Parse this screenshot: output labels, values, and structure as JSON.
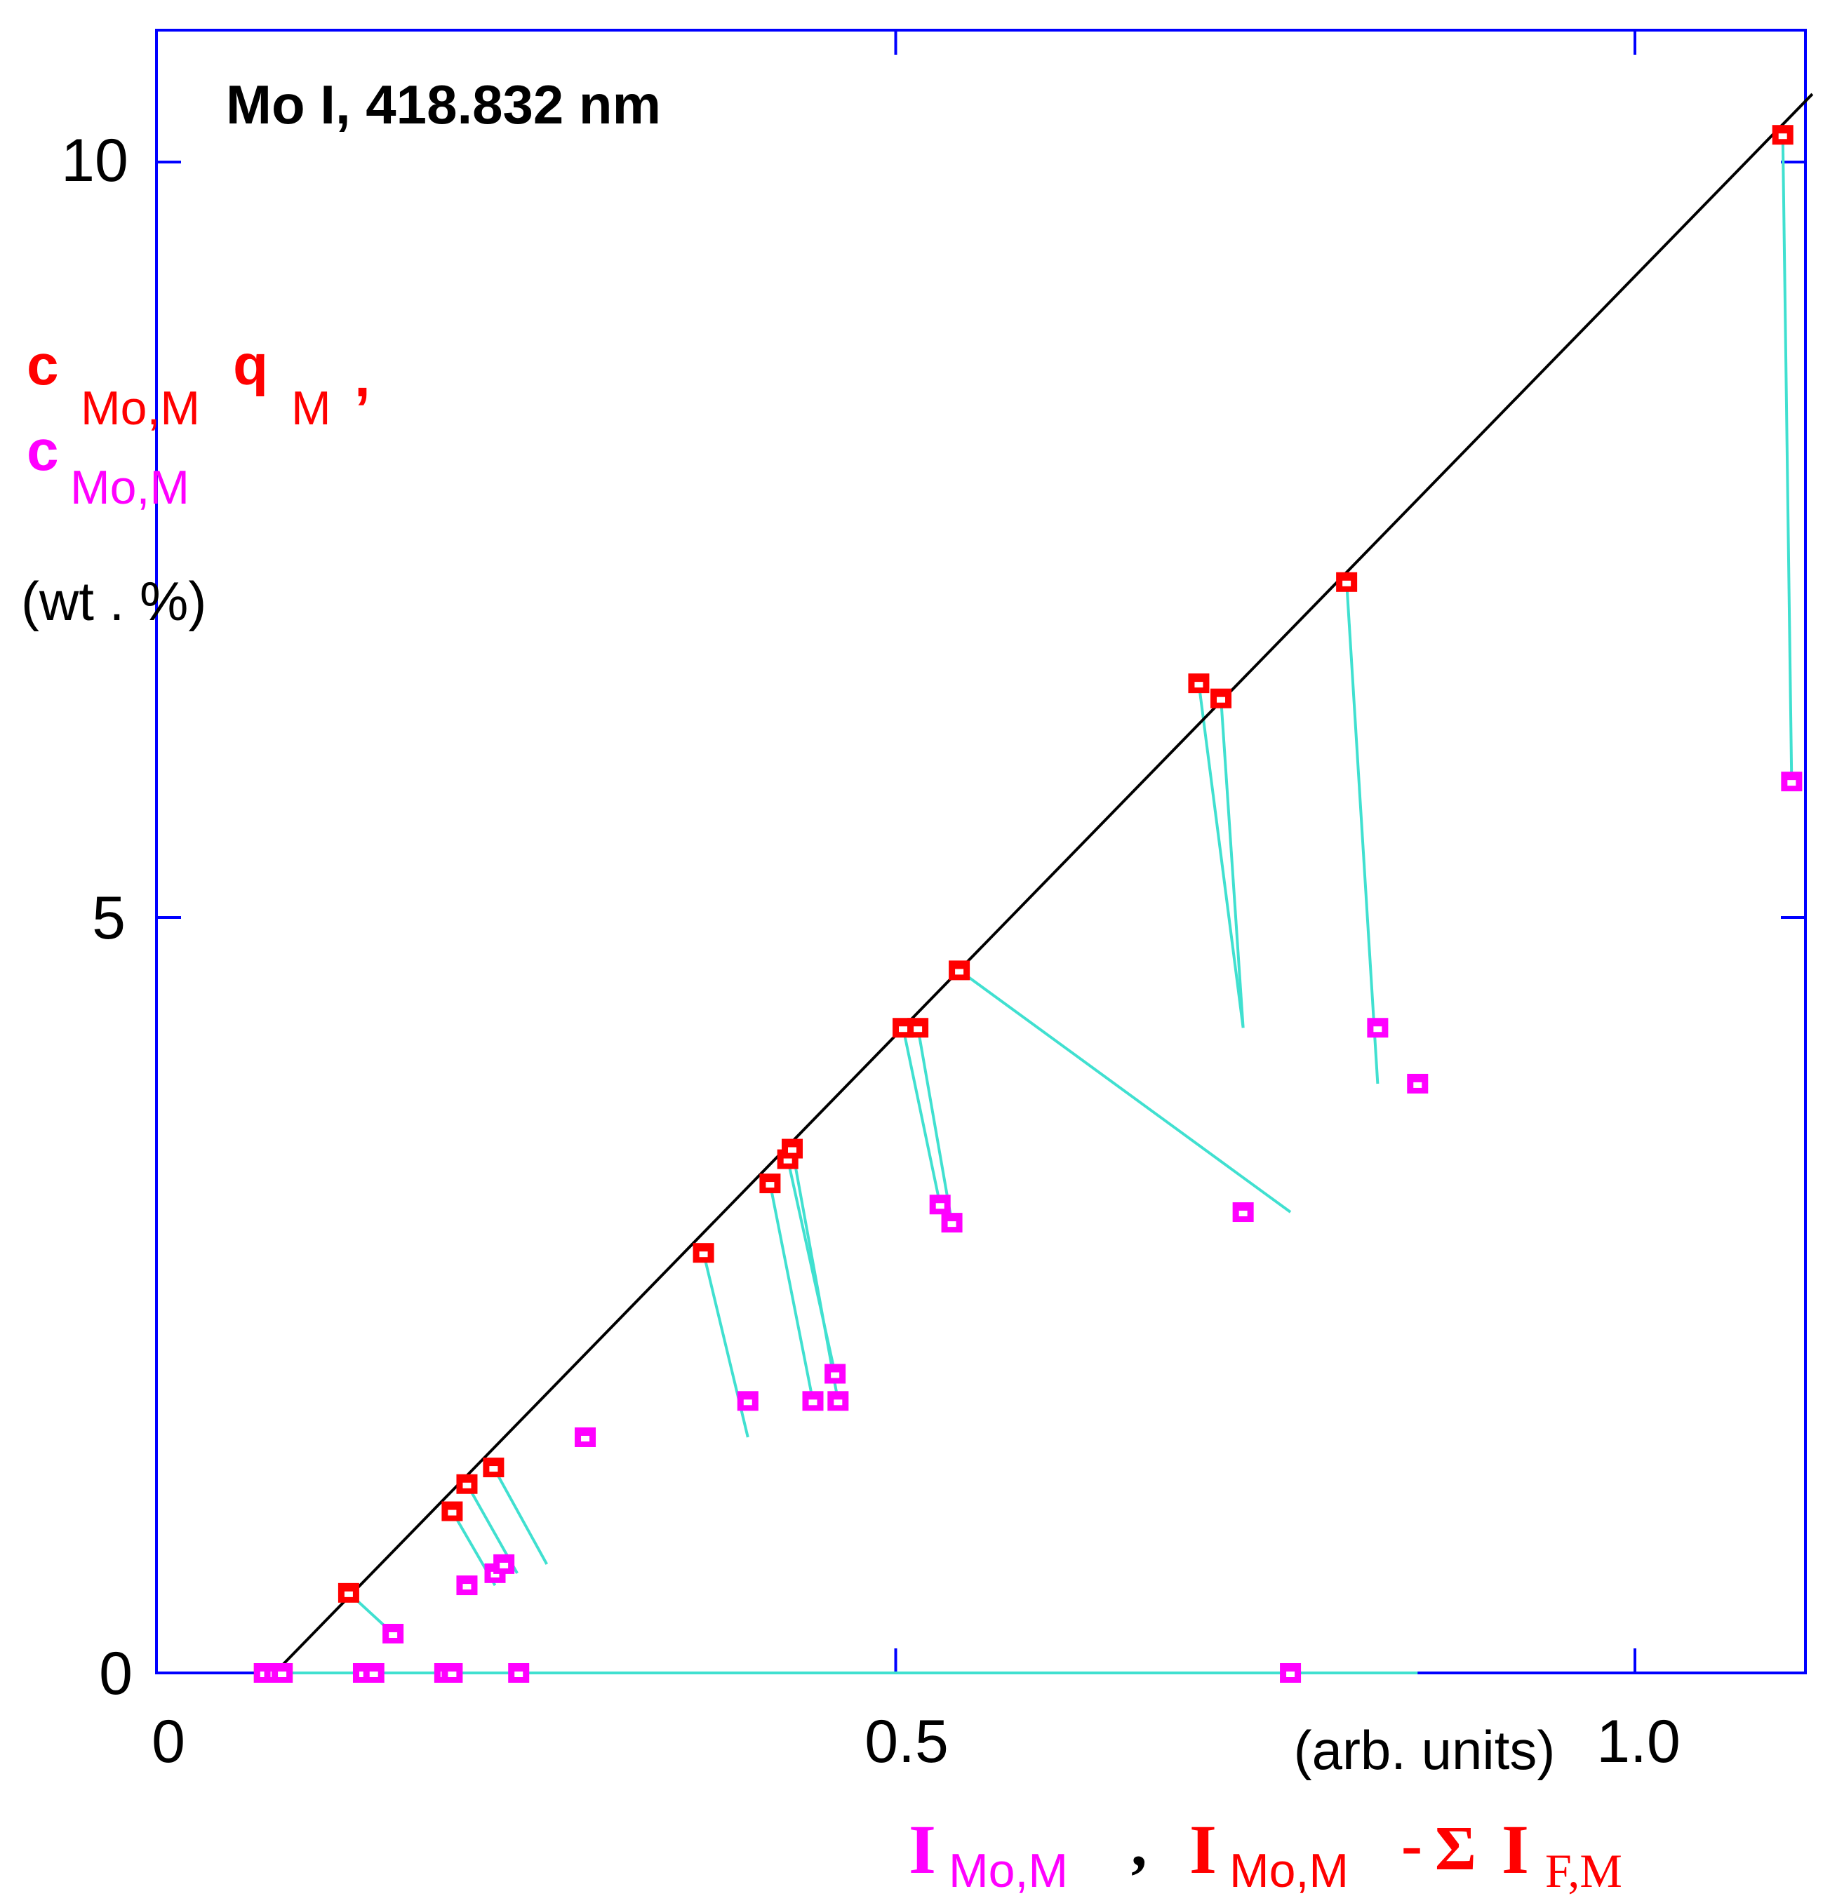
{
  "chart_data": {
    "type": "scatter",
    "title": "Mo I, 418.832 nm",
    "xlim": [
      0,
      1.12
    ],
    "ylim": [
      0,
      10.5
    ],
    "x_ticks": [
      "0",
      "0.5",
      "1.0"
    ],
    "y_ticks": [
      "0",
      "5",
      "10"
    ],
    "x_tick_values": [
      0,
      0.5,
      1.0
    ],
    "y_tick_values": [
      0,
      5,
      10
    ],
    "xlabel_units": "(arb. units)",
    "ylabel_units": "(wt . %)",
    "ylabel": {
      "red_line": {
        "main": "c",
        "sub1": "Mo,M",
        "main2": "q",
        "sub2": "M",
        "comma": ","
      },
      "magenta_line": {
        "main": "c",
        "sub": "Mo,M"
      }
    },
    "xlabel": {
      "magenta": {
        "main": "I",
        "sub": "Mo,M",
        "comma": ","
      },
      "red": {
        "main": "I",
        "sub": "Mo,M",
        "minus": "-",
        "sigma": "Σ",
        "main2": "I",
        "sub2": "F,M"
      }
    },
    "fit_line": {
      "x": [
        0.08,
        1.12
      ],
      "y": [
        0,
        10.45
      ]
    },
    "colors": {
      "axis": "#0000ff",
      "red": "#ff0000",
      "magenta": "#ff00ff",
      "connector": "#40e0d0",
      "fit": "#000000"
    },
    "series": [
      {
        "color": "red",
        "x": [
          0.073,
          0.08,
          0.085,
          0.13,
          0.2,
          0.21,
          0.228,
          0.37,
          0.415,
          0.427,
          0.43,
          0.505,
          0.515,
          0.543,
          0.705,
          0.72,
          0.805,
          1.1
        ],
        "y": [
          0.0,
          0.0,
          0.0,
          0.53,
          1.07,
          1.25,
          1.36,
          2.78,
          3.24,
          3.4,
          3.47,
          4.27,
          4.27,
          4.65,
          6.55,
          6.45,
          7.22,
          10.18
        ]
      },
      {
        "color": "magenta",
        "x": [
          0.073,
          0.08,
          0.085,
          0.14,
          0.147,
          0.16,
          0.195,
          0.2,
          0.21,
          0.229,
          0.235,
          0.245,
          0.29,
          0.4,
          0.444,
          0.459,
          0.461,
          0.53,
          0.538,
          0.767,
          0.735,
          0.826,
          0.853,
          1.106
        ],
        "y": [
          0.0,
          0.0,
          0.0,
          0.0,
          0.0,
          0.26,
          0.0,
          0.0,
          0.58,
          0.66,
          0.72,
          0.0,
          1.56,
          1.8,
          1.8,
          1.98,
          1.8,
          3.1,
          2.98,
          0.0,
          3.05,
          4.27,
          3.9,
          5.9
        ]
      }
    ],
    "pairs": [
      [
        [
          0.13,
          0.53
        ],
        [
          0.16,
          0.26
        ]
      ],
      [
        [
          0.2,
          1.07
        ],
        [
          0.229,
          0.58
        ]
      ],
      [
        [
          0.21,
          1.25
        ],
        [
          0.244,
          0.66
        ]
      ],
      [
        [
          0.228,
          1.36
        ],
        [
          0.264,
          0.72
        ]
      ],
      [
        [
          0.37,
          2.78
        ],
        [
          0.4,
          1.56
        ]
      ],
      [
        [
          0.415,
          3.24
        ],
        [
          0.444,
          1.8
        ]
      ],
      [
        [
          0.427,
          3.4
        ],
        [
          0.459,
          1.98
        ]
      ],
      [
        [
          0.43,
          3.47
        ],
        [
          0.461,
          1.8
        ]
      ],
      [
        [
          0.505,
          4.27
        ],
        [
          0.53,
          3.1
        ]
      ],
      [
        [
          0.515,
          4.27
        ],
        [
          0.538,
          2.98
        ]
      ],
      [
        [
          0.543,
          4.65
        ],
        [
          0.767,
          3.05
        ]
      ],
      [
        [
          0.705,
          6.55
        ],
        [
          0.735,
          4.27
        ]
      ],
      [
        [
          0.72,
          6.45
        ],
        [
          0.735,
          4.27
        ]
      ],
      [
        [
          0.805,
          7.22
        ],
        [
          0.826,
          3.9
        ]
      ],
      [
        [
          1.1,
          10.18
        ],
        [
          1.106,
          5.9
        ]
      ],
      [
        [
          0.08,
          0.0
        ],
        [
          0.853,
          0.0
        ]
      ]
    ]
  }
}
